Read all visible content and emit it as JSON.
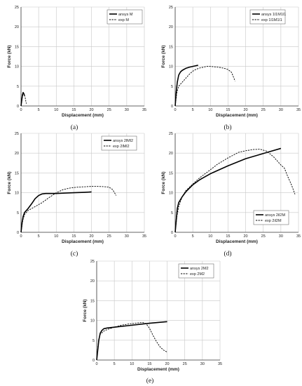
{
  "chart_data": [
    {
      "type": "line",
      "caption": "(a)",
      "xlabel": "Displacement (mm)",
      "ylabel": "Force (kN)",
      "xlim": [
        0,
        35
      ],
      "ylim": [
        0,
        25
      ],
      "xticks": [
        0,
        5,
        10,
        15,
        20,
        25,
        30,
        35
      ],
      "yticks": [
        0,
        5,
        10,
        15,
        20,
        25
      ],
      "grid": true,
      "legend_position": "top-right",
      "series": [
        {
          "name": "ansys M",
          "style": "solid",
          "x": [
            0,
            0.2,
            0.4,
            0.6,
            0.8,
            1.0
          ],
          "y": [
            0,
            1.5,
            2.8,
            3.4,
            3.1,
            2.6
          ]
        },
        {
          "name": "exp M",
          "style": "dashed",
          "x": [
            0,
            0.3,
            0.6,
            0.9,
            1.2,
            1.5
          ],
          "y": [
            0,
            1.8,
            3.2,
            3.0,
            2.0,
            0.6
          ]
        }
      ]
    },
    {
      "type": "line",
      "caption": "(b)",
      "xlabel": "Displacement (mm)",
      "ylabel": "Force (kN)",
      "xlim": [
        0,
        35
      ],
      "ylim": [
        0,
        25
      ],
      "xticks": [
        0,
        5,
        10,
        15,
        20,
        25,
        30,
        35
      ],
      "yticks": [
        0,
        5,
        10,
        15,
        20,
        25
      ],
      "grid": true,
      "legend_position": "top-right",
      "series": [
        {
          "name": "ansys 1l1M1l1",
          "style": "solid",
          "x": [
            0,
            0.3,
            0.6,
            1.0,
            1.5,
            2.0,
            3.0,
            4.0,
            5.0,
            6.0,
            6.5
          ],
          "y": [
            0,
            3.5,
            6.0,
            7.8,
            8.6,
            9.0,
            9.5,
            9.8,
            10.0,
            10.2,
            10.3
          ]
        },
        {
          "name": "exp 1l1M1l1",
          "style": "dashed",
          "x": [
            0,
            0.5,
            1.0,
            2.0,
            3.0,
            4.0,
            5.0,
            6.0,
            7.0,
            8.0,
            9.0,
            10.0,
            11.0,
            12.0,
            13.0,
            14.0,
            15.0,
            16.0,
            17.0
          ],
          "y": [
            0,
            3.5,
            5.0,
            6.0,
            7.0,
            8.0,
            8.8,
            9.3,
            9.6,
            9.8,
            10.0,
            10.0,
            9.9,
            9.8,
            9.7,
            9.5,
            9.2,
            8.5,
            6.3
          ]
        }
      ]
    },
    {
      "type": "line",
      "caption": "(c)",
      "xlabel": "Displacement (mm)",
      "ylabel": "Force (kN)",
      "xlim": [
        0,
        35
      ],
      "ylim": [
        0,
        25
      ],
      "xticks": [
        0,
        5,
        10,
        15,
        20,
        25,
        30,
        35
      ],
      "yticks": [
        0,
        5,
        10,
        15,
        20,
        25
      ],
      "grid": true,
      "legend_position": "top-right",
      "series": [
        {
          "name": "ansys 2lMl2",
          "style": "solid",
          "x": [
            0,
            0.3,
            0.6,
            1.0,
            2.0,
            3.0,
            4.0,
            5.0,
            6.0,
            7.0,
            8.0,
            10.0,
            12.0,
            15.0,
            18.0,
            20.0
          ],
          "y": [
            0,
            2.5,
            4.0,
            5.0,
            6.0,
            7.2,
            8.5,
            9.3,
            9.7,
            9.8,
            9.8,
            9.8,
            9.9,
            10.0,
            10.1,
            10.2
          ]
        },
        {
          "name": "exp 2lMl2",
          "style": "dashed",
          "x": [
            0,
            0.5,
            1.0,
            2.0,
            4.0,
            6.0,
            8.0,
            10.0,
            12.0,
            14.0,
            16.0,
            18.0,
            20.0,
            22.0,
            24.0,
            25.0,
            26.0,
            27.0
          ],
          "y": [
            0,
            3.0,
            4.5,
            5.5,
            6.5,
            7.5,
            8.8,
            10.0,
            10.8,
            11.2,
            11.4,
            11.5,
            11.6,
            11.6,
            11.5,
            11.4,
            10.8,
            9.3
          ]
        }
      ]
    },
    {
      "type": "line",
      "caption": "(d)",
      "xlabel": "Displacement (mm)",
      "ylabel": "Force (kN)",
      "xlim": [
        0,
        35
      ],
      "ylim": [
        0,
        25
      ],
      "xticks": [
        0,
        5,
        10,
        15,
        20,
        25,
        30,
        35
      ],
      "yticks": [
        0,
        5,
        10,
        15,
        20,
        25
      ],
      "grid": true,
      "legend_position": "bottom-right",
      "series": [
        {
          "name": "ansys 2il2M",
          "style": "solid",
          "x": [
            0,
            0.3,
            0.6,
            1.0,
            2.0,
            3.0,
            5.0,
            7.0,
            10.0,
            15.0,
            20.0,
            25.0,
            30.0
          ],
          "y": [
            0,
            3.0,
            6.0,
            7.5,
            9.0,
            10.2,
            12.0,
            13.3,
            14.8,
            16.8,
            18.6,
            19.9,
            21.2
          ]
        },
        {
          "name": "exp 2il2M",
          "style": "dashed",
          "x": [
            0,
            0.5,
            1.0,
            2.0,
            3.0,
            5.0,
            7.0,
            10.0,
            12.0,
            15.0,
            18.0,
            20.0,
            22.0,
            24.0,
            26.0,
            28.0,
            30.0,
            31.0,
            32.0,
            33.0,
            34.0
          ],
          "y": [
            0,
            4.0,
            6.5,
            9.0,
            10.5,
            12.2,
            13.8,
            15.8,
            17.2,
            18.8,
            20.2,
            20.6,
            20.9,
            21.0,
            20.5,
            19.0,
            17.0,
            16.2,
            14.0,
            12.0,
            9.6
          ]
        }
      ]
    },
    {
      "type": "line",
      "caption": "(e)",
      "xlabel": "Displacement (mm)",
      "ylabel": "Force (kN)",
      "xlim": [
        0,
        35
      ],
      "ylim": [
        0,
        25
      ],
      "xticks": [
        0,
        5,
        10,
        15,
        20,
        25,
        30,
        35
      ],
      "yticks": [
        0,
        5,
        10,
        15,
        20,
        25
      ],
      "grid": true,
      "legend_position": "top-right",
      "series": [
        {
          "name": "ansys 2M2",
          "style": "solid",
          "x": [
            0,
            0.3,
            0.6,
            1.0,
            1.5,
            2.0,
            3.0,
            5.0,
            10.0,
            15.0,
            20.0
          ],
          "y": [
            0,
            2.5,
            5.0,
            6.8,
            7.5,
            7.9,
            8.1,
            8.3,
            8.8,
            9.3,
            9.7
          ]
        },
        {
          "name": "exp 2M2",
          "style": "dashed",
          "x": [
            0,
            0.5,
            1.0,
            2.0,
            3.0,
            5.0,
            7.0,
            9.0,
            11.0,
            12.0,
            13.0,
            14.0,
            15.0,
            16.0,
            17.0,
            18.0,
            19.0,
            20.0
          ],
          "y": [
            0,
            5.0,
            6.5,
            7.3,
            7.7,
            8.3,
            8.8,
            9.1,
            9.3,
            9.4,
            9.5,
            9.2,
            8.0,
            6.2,
            4.6,
            3.3,
            2.5,
            2.0
          ]
        }
      ]
    }
  ]
}
